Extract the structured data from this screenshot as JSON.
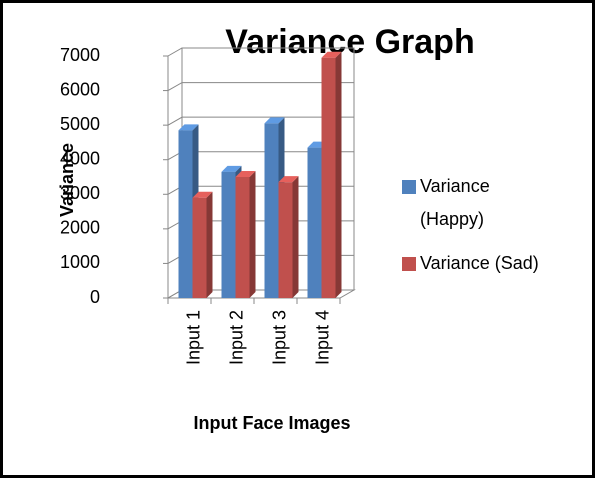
{
  "chart_data": {
    "type": "bar3d",
    "title": "Variance Graph",
    "x_label": "Input Face Images",
    "y_label": "Variance",
    "categories": [
      "Input 1",
      "Input 2",
      "Input 3",
      "Input 4"
    ],
    "series": [
      {
        "name": "Variance (Happy)",
        "color": "#4f81bd",
        "values": [
          4850,
          3650,
          5050,
          4350
        ]
      },
      {
        "name": "Variance (Sad)",
        "color": "#c0504d",
        "values": [
          2900,
          3500,
          3350,
          6950
        ]
      }
    ],
    "ylim": [
      0,
      7000
    ],
    "yticks": [
      0,
      1000,
      2000,
      3000,
      4000,
      5000,
      6000,
      7000
    ],
    "grid": true,
    "legend": "right"
  }
}
